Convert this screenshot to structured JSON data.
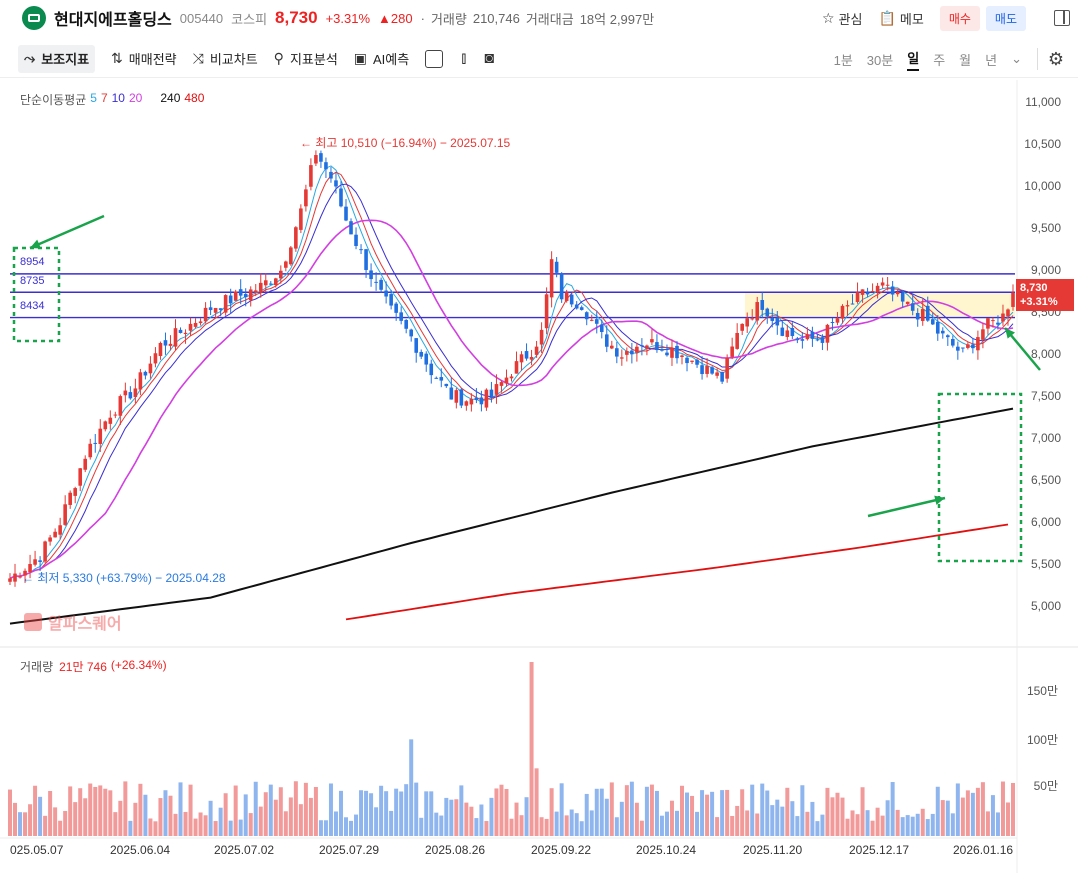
{
  "header": {
    "stock_name": "현대지에프홀딩스",
    "code": "005440",
    "market": "코스피",
    "price": "8,730",
    "change_pct": "+3.31%",
    "change_abs": "▲280",
    "separator": "·",
    "volume_label": "거래량",
    "volume": "210,746",
    "amount_label": "거래대금",
    "amount": "18억 2,997만",
    "watch_label": "관심",
    "memo_label": "메모",
    "buy_label": "매수",
    "sell_label": "매도"
  },
  "toolbar": {
    "items": [
      "보조지표",
      "매매전략",
      "비교차트",
      "지표분석",
      "AI예측"
    ],
    "periods": [
      "1분",
      "30분",
      "일",
      "주",
      "월",
      "년"
    ],
    "active_period": "일"
  },
  "legend": {
    "label": "단순이동평균",
    "ma": [
      {
        "period": "5",
        "color": "#29a8e0"
      },
      {
        "period": "7",
        "color": "#e53935"
      },
      {
        "period": "10",
        "color": "#3a2fd0"
      },
      {
        "period": "20",
        "color": "#d23fe0"
      },
      {
        "period": "240",
        "color": "#111111"
      },
      {
        "period": "480",
        "color": "#e01010"
      }
    ]
  },
  "annotations": {
    "high": "최고 10,510 (−16.94%) − 2025.07.15",
    "low": "최저 5,330 (+63.79%) − 2025.04.28",
    "levels": [
      "8954",
      "8735",
      "8434"
    ]
  },
  "price_tag": {
    "price": "8,730",
    "pct": "+3.31%"
  },
  "volume_legend": {
    "label": "거래량",
    "value": "21만 746",
    "pct": "(+26.34%)"
  },
  "watermark": "알파스퀘어",
  "chart_data": {
    "type": "candlestick",
    "y_ticks": [
      "11,000",
      "10,500",
      "10,000",
      "9,500",
      "9,000",
      "8,500",
      "8,000",
      "7,500",
      "7,000",
      "6,500",
      "6,000",
      "5,500",
      "5,000"
    ],
    "ylim": [
      4750,
      11200
    ],
    "x_ticks": [
      "025.05.07",
      "2025.06.04",
      "2025.07.02",
      "2025.07.29",
      "2025.08.26",
      "2025.09.22",
      "2025.10.24",
      "2025.11.20",
      "2025.12.17",
      "2026.01.16"
    ],
    "horizontal_levels": [
      8954,
      8735,
      8434
    ],
    "volume_ticks": [
      "150만",
      "100만",
      "50만"
    ],
    "close_path": [
      {
        "i": 0,
        "v": 5330
      },
      {
        "i": 6,
        "v": 5600
      },
      {
        "i": 10,
        "v": 6000
      },
      {
        "i": 15,
        "v": 6800
      },
      {
        "i": 20,
        "v": 7300
      },
      {
        "i": 25,
        "v": 7600
      },
      {
        "i": 30,
        "v": 8100
      },
      {
        "i": 35,
        "v": 8300
      },
      {
        "i": 40,
        "v": 8550
      },
      {
        "i": 46,
        "v": 8700
      },
      {
        "i": 50,
        "v": 8800
      },
      {
        "i": 54,
        "v": 9000
      },
      {
        "i": 58,
        "v": 9700
      },
      {
        "i": 61,
        "v": 10400
      },
      {
        "i": 64,
        "v": 10100
      },
      {
        "i": 67,
        "v": 9600
      },
      {
        "i": 70,
        "v": 9200
      },
      {
        "i": 73,
        "v": 8800
      },
      {
        "i": 76,
        "v": 8500
      },
      {
        "i": 80,
        "v": 8200
      },
      {
        "i": 84,
        "v": 7800
      },
      {
        "i": 88,
        "v": 7500
      },
      {
        "i": 92,
        "v": 7450
      },
      {
        "i": 96,
        "v": 7500
      },
      {
        "i": 100,
        "v": 7800
      },
      {
        "i": 104,
        "v": 8050
      },
      {
        "i": 106,
        "v": 8250
      },
      {
        "i": 108,
        "v": 9100
      },
      {
        "i": 110,
        "v": 8700
      },
      {
        "i": 114,
        "v": 8600
      },
      {
        "i": 118,
        "v": 8200
      },
      {
        "i": 122,
        "v": 8000
      },
      {
        "i": 126,
        "v": 8150
      },
      {
        "i": 130,
        "v": 8100
      },
      {
        "i": 134,
        "v": 8000
      },
      {
        "i": 138,
        "v": 7850
      },
      {
        "i": 142,
        "v": 7700
      },
      {
        "i": 146,
        "v": 8400
      },
      {
        "i": 150,
        "v": 8600
      },
      {
        "i": 154,
        "v": 8300
      },
      {
        "i": 158,
        "v": 8150
      },
      {
        "i": 162,
        "v": 8200
      },
      {
        "i": 166,
        "v": 8500
      },
      {
        "i": 170,
        "v": 8700
      },
      {
        "i": 174,
        "v": 8800
      },
      {
        "i": 178,
        "v": 8600
      },
      {
        "i": 182,
        "v": 8450
      },
      {
        "i": 186,
        "v": 8200
      },
      {
        "i": 190,
        "v": 8000
      },
      {
        "i": 194,
        "v": 8300
      },
      {
        "i": 198,
        "v": 8450
      },
      {
        "i": 200,
        "v": 8730
      }
    ],
    "ma240_path": [
      {
        "i": 0,
        "v": 4790
      },
      {
        "i": 40,
        "v": 5100
      },
      {
        "i": 80,
        "v": 5750
      },
      {
        "i": 120,
        "v": 6350
      },
      {
        "i": 160,
        "v": 6900
      },
      {
        "i": 200,
        "v": 7350
      }
    ],
    "ma480_path": [
      {
        "i": 67,
        "v": 4840
      },
      {
        "i": 100,
        "v": 5150
      },
      {
        "i": 140,
        "v": 5450
      },
      {
        "i": 170,
        "v": 5700
      },
      {
        "i": 200,
        "v": 5980
      }
    ],
    "volume_spikes": [
      {
        "i": 104,
        "v": 1800000
      },
      {
        "i": 80,
        "v": 1000000
      },
      {
        "i": 105,
        "v": 700000
      }
    ]
  }
}
